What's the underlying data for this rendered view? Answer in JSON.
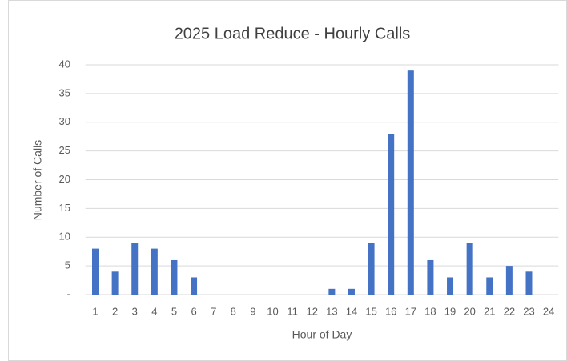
{
  "chart_data": {
    "type": "bar",
    "title": "2025 Load Reduce - Hourly Calls",
    "x_label": "Hour of Day",
    "y_label": "Number of Calls",
    "categories": [
      "1",
      "2",
      "3",
      "4",
      "5",
      "6",
      "7",
      "8",
      "9",
      "10",
      "11",
      "12",
      "13",
      "14",
      "15",
      "16",
      "17",
      "18",
      "19",
      "20",
      "21",
      "22",
      "23",
      "24"
    ],
    "values": [
      8,
      4,
      9,
      8,
      6,
      3,
      0,
      0,
      0,
      0,
      0,
      0,
      1,
      1,
      9,
      28,
      39,
      6,
      3,
      9,
      3,
      5,
      4,
      0
    ],
    "color": "#4472c4",
    "ylim": [
      0,
      40
    ],
    "yticks": [
      {
        "value": 0,
        "label": "-"
      },
      5,
      10,
      15,
      20,
      25,
      30,
      35,
      40
    ],
    "grid": true
  }
}
